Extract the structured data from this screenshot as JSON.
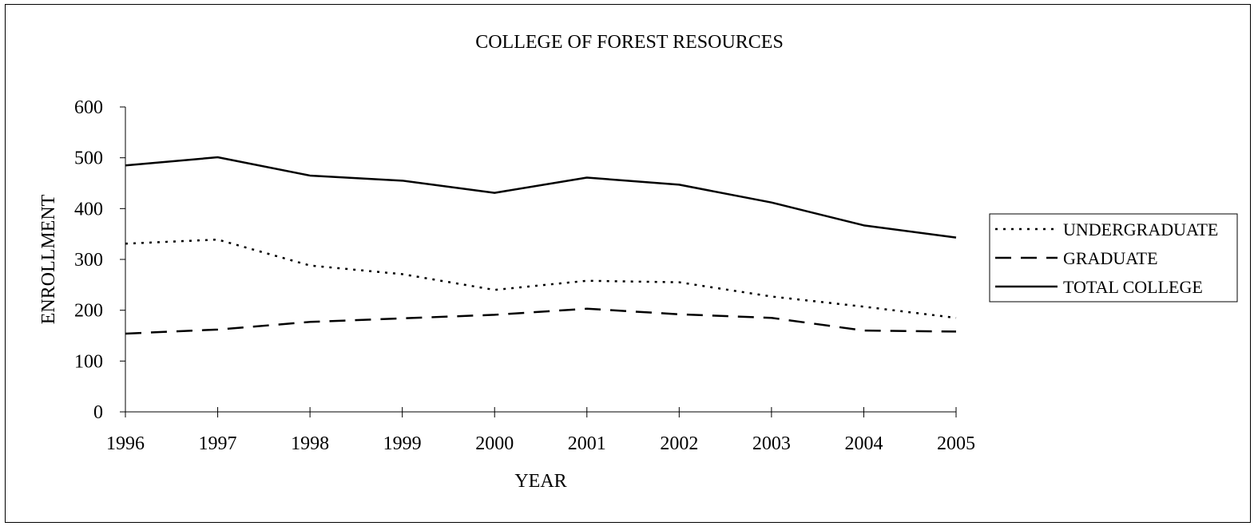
{
  "chart_data": {
    "type": "line",
    "title": "COLLEGE OF FOREST RESOURCES",
    "xlabel": "YEAR",
    "ylabel": "ENROLLMENT",
    "x": [
      "1996",
      "1997",
      "1998",
      "1999",
      "2000",
      "2001",
      "2002",
      "2003",
      "2004",
      "2005"
    ],
    "ylim": [
      0,
      600
    ],
    "yticks": [
      "0",
      "100",
      "200",
      "300",
      "400",
      "500",
      "600"
    ],
    "grid": false,
    "legend_position": "right",
    "series": [
      {
        "name": "UNDERGRADUATE",
        "style": "dotted",
        "color": "#000000",
        "values": [
          331,
          339,
          288,
          271,
          240,
          258,
          255,
          227,
          207,
          185
        ]
      },
      {
        "name": "GRADUATE",
        "style": "dashed",
        "color": "#000000",
        "values": [
          154,
          162,
          177,
          184,
          191,
          203,
          192,
          185,
          160,
          158
        ]
      },
      {
        "name": "TOTAL COLLEGE",
        "style": "solid",
        "color": "#000000",
        "values": [
          485,
          501,
          465,
          455,
          431,
          461,
          447,
          412,
          367,
          343
        ]
      }
    ]
  }
}
